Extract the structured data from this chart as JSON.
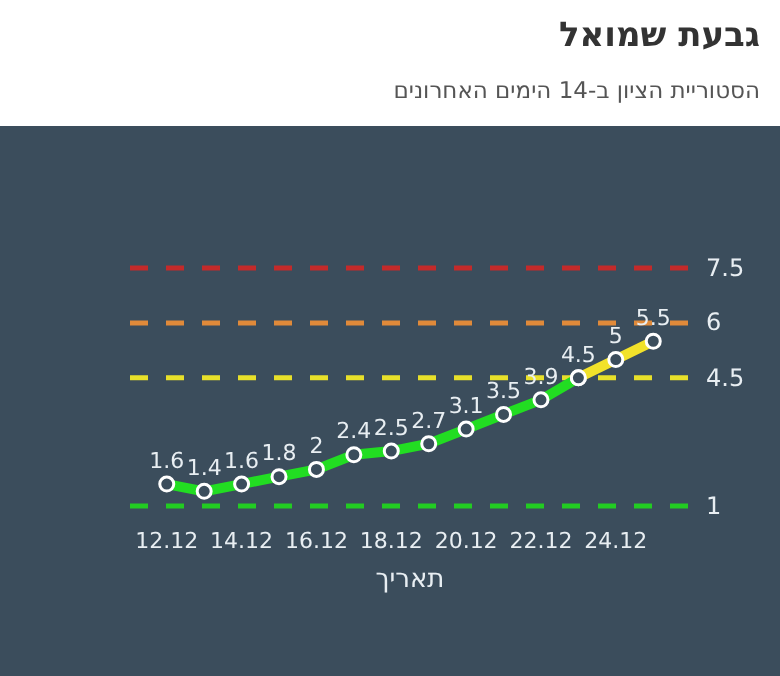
{
  "chart_data": {
    "type": "line",
    "title": "גבעת שמואל",
    "subtitle": "הסטוריית הציון ב-14 הימים האחרונים",
    "xlabel": "תאריך",
    "categories": [
      "12.12",
      null,
      "14.12",
      null,
      "16.12",
      null,
      "18.12",
      null,
      "20.12",
      null,
      "22.12",
      null,
      "24.12",
      null
    ],
    "series": [
      {
        "color": "#22dd22",
        "values": [
          1.6,
          1.4,
          1.6,
          1.8,
          2,
          2.4,
          2.5,
          2.7,
          3.1,
          3.5,
          3.9,
          4.5,
          null,
          null
        ],
        "value_labels": [
          "1.6",
          "1.4",
          "1.6",
          "1.8",
          "2",
          "2.4",
          "2.5",
          "2.7",
          "3.1",
          "3.5",
          "3.9",
          "4.5",
          null,
          null
        ]
      },
      {
        "color": "#f2e22a",
        "values": [
          null,
          null,
          null,
          null,
          null,
          null,
          null,
          null,
          null,
          null,
          null,
          4.5,
          5,
          5.5
        ],
        "value_labels": [
          null,
          null,
          null,
          null,
          null,
          null,
          null,
          null,
          null,
          null,
          null,
          null,
          "5",
          "5.5"
        ]
      }
    ],
    "tick_labels": "x",
    "grid": false,
    "marker": "circle",
    "line_style": "solid",
    "ref_lines": [
      {
        "axis": "y",
        "value": 1,
        "label": "1",
        "color": "#22cc22",
        "line_style": "dashed"
      },
      {
        "axis": "y",
        "value": 4.5,
        "label": "4.5",
        "color": "#e8e02a",
        "line_style": "dashed"
      },
      {
        "axis": "y",
        "value": 6,
        "label": "6",
        "color": "#e08a3a",
        "line_style": "dashed"
      },
      {
        "axis": "y",
        "value": 7.5,
        "label": "7.5",
        "color": "#c42a2a",
        "line_style": "dashed"
      }
    ]
  }
}
